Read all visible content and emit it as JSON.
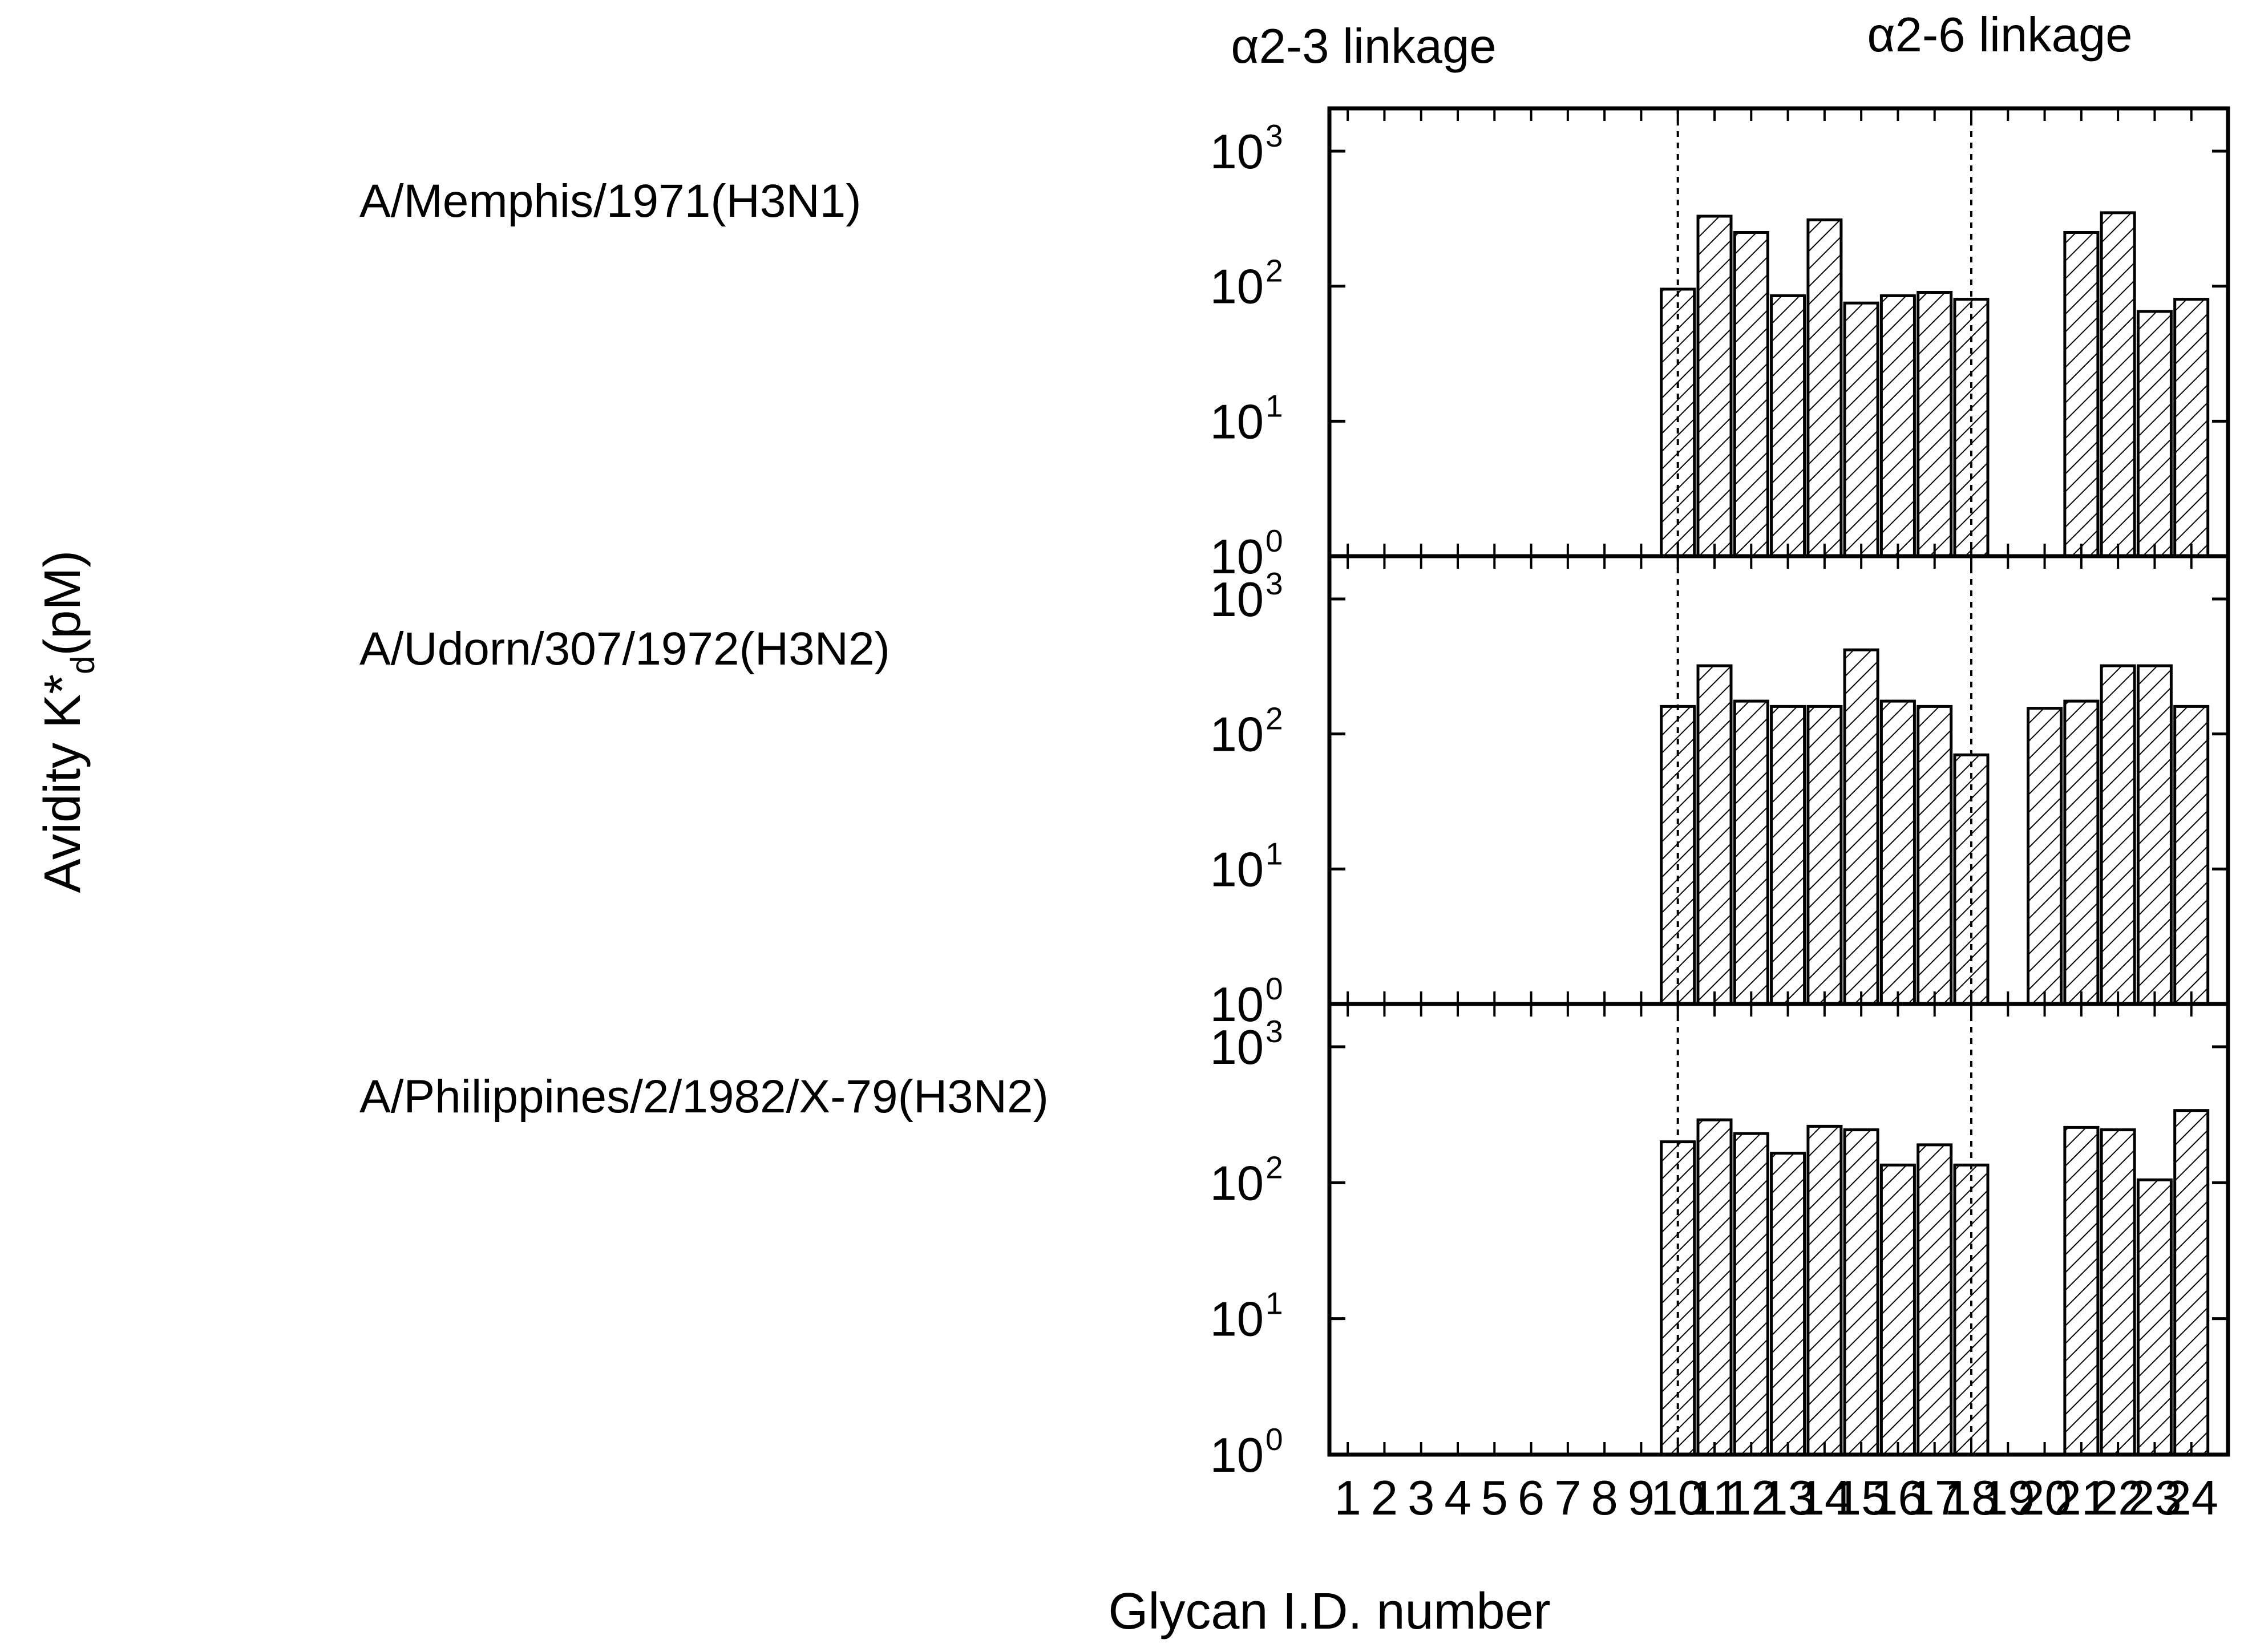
{
  "chart_data": {
    "type": "bar",
    "yscale": "log",
    "ylabel": "Avidity K*d(pM)",
    "xlabel": "Glycan I.D. number",
    "ylim": [
      1,
      1000
    ],
    "y_ticks": [
      1,
      10,
      100,
      1000
    ],
    "y_tick_labels": [
      {
        "base": "10",
        "exp": "0"
      },
      {
        "base": "10",
        "exp": "1"
      },
      {
        "base": "10",
        "exp": "2"
      },
      {
        "base": "10",
        "exp": "3"
      }
    ],
    "categories": [
      "1",
      "2",
      "3",
      "4",
      "5",
      "6",
      "7",
      "8",
      "9",
      "10",
      "11",
      "12",
      "13",
      "14",
      "15",
      "16",
      "17",
      "18",
      "19",
      "20",
      "21",
      "22",
      "23",
      "24"
    ],
    "linkage_groups": [
      {
        "label": "α2-3 linkage",
        "divider_after": 9.5
      },
      {
        "label": "α2-6 linkage",
        "divider_after": 17.5
      }
    ],
    "bar_pattern": "diagonal-hatch",
    "series": [
      {
        "name": "A/Memphis/1971(H3N1)",
        "values": [
          null,
          null,
          null,
          null,
          null,
          null,
          null,
          null,
          null,
          95,
          330,
          250,
          85,
          310,
          75,
          85,
          90,
          80,
          null,
          null,
          250,
          350,
          65,
          80
        ]
      },
      {
        "name": "A/Udorn/307/1972(H3N2)",
        "values": [
          null,
          null,
          null,
          null,
          null,
          null,
          null,
          null,
          null,
          160,
          320,
          175,
          160,
          160,
          420,
          175,
          160,
          70,
          null,
          155,
          175,
          320,
          320,
          160
        ]
      },
      {
        "name": "A/Philippines/2/1982/X-79(H3N2)",
        "values": [
          null,
          null,
          null,
          null,
          null,
          null,
          null,
          null,
          null,
          200,
          290,
          230,
          165,
          260,
          245,
          135,
          190,
          135,
          null,
          null,
          255,
          245,
          105,
          340
        ]
      }
    ]
  }
}
